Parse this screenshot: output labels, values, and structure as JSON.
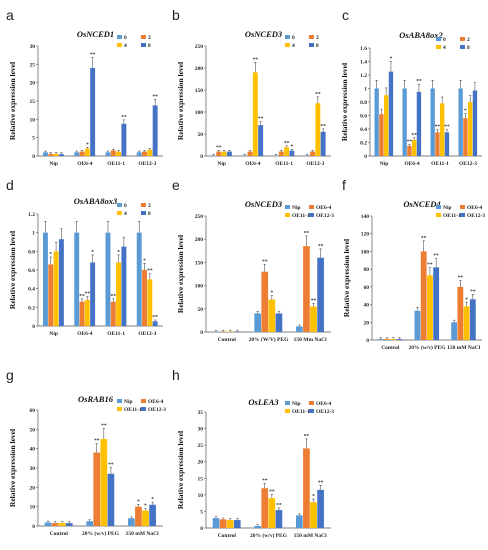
{
  "colors": {
    "series0": "#5b9bd5",
    "series1": "#ed7d31",
    "series2": "#ffc000",
    "series3": "#4472c4"
  },
  "chart_data": [
    {
      "panel": "a",
      "type": "bar",
      "title": "OsNCED1",
      "ylabel": "Relative expression level",
      "ylim": [
        0,
        30
      ],
      "yticks": [
        "0",
        "5",
        "10",
        "15",
        "20",
        "25",
        "30"
      ],
      "categories": [
        "Nip",
        "OE6-4",
        "OE11-1",
        "OE12-3"
      ],
      "series": [
        {
          "name": "0",
          "values": [
            1.0,
            1.0,
            1.0,
            1.0
          ]
        },
        {
          "name": "2",
          "values": [
            0.6,
            1.2,
            1.5,
            1.2
          ]
        },
        {
          "name": "4",
          "values": [
            0.6,
            2.0,
            1.2,
            1.7
          ]
        },
        {
          "name": "8",
          "values": [
            0.5,
            24.0,
            8.8,
            13.8
          ]
        }
      ],
      "sig": [
        [
          "",
          "",
          "",
          ""
        ],
        [
          "",
          "",
          "",
          ""
        ],
        [
          "",
          "*",
          "",
          ""
        ],
        [
          "",
          "**",
          "**",
          "**"
        ]
      ],
      "legend_layout": "2x2"
    },
    {
      "panel": "b",
      "type": "bar",
      "title": "OsNCED3",
      "ylabel": "Relative expression level",
      "ylim": [
        0,
        250
      ],
      "yticks": [
        "0",
        "50",
        "100",
        "150",
        "200",
        "250"
      ],
      "categories": [
        "Nip",
        "OE6-4",
        "OE11-1",
        "OE12-3"
      ],
      "series": [
        {
          "name": "0",
          "values": [
            1,
            1,
            1,
            1
          ]
        },
        {
          "name": "2",
          "values": [
            10,
            10,
            10,
            10
          ]
        },
        {
          "name": "4",
          "values": [
            10,
            190,
            20,
            120
          ]
        },
        {
          "name": "8",
          "values": [
            10,
            70,
            12,
            55
          ]
        }
      ],
      "sig": [
        [
          "",
          "",
          "",
          ""
        ],
        [
          "**",
          "",
          "",
          ""
        ],
        [
          "",
          "**",
          "**",
          "**"
        ],
        [
          "",
          "**",
          "*",
          "**"
        ]
      ],
      "legend_layout": "2x2"
    },
    {
      "panel": "c",
      "type": "bar",
      "title": "OsABA8ox2",
      "ylabel": "Relative expression level",
      "ylim": [
        0,
        1.6
      ],
      "yticks": [
        "0",
        "0.2",
        "0.4",
        "0.6",
        "0.8",
        "1",
        "1.2",
        "1.4",
        "1.6"
      ],
      "categories": [
        "Nip",
        "OE6-4",
        "OE11-1",
        "OE12-3"
      ],
      "series": [
        {
          "name": "0",
          "values": [
            1.0,
            1.0,
            1.0,
            1.0
          ]
        },
        {
          "name": "2",
          "values": [
            0.62,
            0.15,
            0.35,
            0.56
          ]
        },
        {
          "name": "4",
          "values": [
            0.9,
            0.24,
            0.78,
            0.8
          ]
        },
        {
          "name": "8",
          "values": [
            1.25,
            0.95,
            0.35,
            0.97
          ]
        }
      ],
      "sig": [
        [
          "",
          "",
          "",
          ""
        ],
        [
          "",
          "**",
          "**",
          "*"
        ],
        [
          "",
          "**",
          "",
          ""
        ],
        [
          "*",
          "**",
          "**",
          ""
        ]
      ],
      "legend_layout": "2x2"
    },
    {
      "panel": "d",
      "type": "bar",
      "title": "OsABA8ox3",
      "ylabel": "Relative expression level",
      "ylim": [
        0,
        1.2
      ],
      "yticks": [
        "0",
        "0.2",
        "0.4",
        "0.6",
        "0.8",
        "1",
        "1.2"
      ],
      "categories": [
        "Nip",
        "OE6-4",
        "OE11-1",
        "OE12-3"
      ],
      "series": [
        {
          "name": "0",
          "values": [
            1.0,
            1.0,
            1.0,
            1.0
          ]
        },
        {
          "name": "2",
          "values": [
            0.66,
            0.26,
            0.26,
            0.6
          ]
        },
        {
          "name": "4",
          "values": [
            0.8,
            0.28,
            0.68,
            0.5
          ]
        },
        {
          "name": "8",
          "values": [
            0.93,
            0.68,
            0.85,
            0.05
          ]
        }
      ],
      "sig": [
        [
          "",
          "",
          "",
          ""
        ],
        [
          "*",
          "**",
          "**",
          "*"
        ],
        [
          "",
          "**",
          "*",
          "**"
        ],
        [
          "",
          "*",
          "",
          "**"
        ]
      ],
      "legend_layout": "2x2"
    },
    {
      "panel": "e",
      "type": "bar",
      "title": "OsNCED3",
      "ylabel": "Relative expression level",
      "ylim": [
        0,
        250
      ],
      "yticks": [
        "0",
        "50",
        "100",
        "150",
        "200",
        "250"
      ],
      "categories": [
        "Control",
        "20% (W/V) PEG",
        "150 Mm NaCl"
      ],
      "series": [
        {
          "name": "Nip",
          "values": [
            1,
            40,
            12
          ]
        },
        {
          "name": "OE6-4",
          "values": [
            1,
            130,
            185
          ]
        },
        {
          "name": "OE11-1",
          "values": [
            1,
            70,
            55
          ]
        },
        {
          "name": "OE12-3",
          "values": [
            1,
            40,
            160
          ]
        }
      ],
      "sig": [
        [
          "",
          "",
          ""
        ],
        [
          "",
          "**",
          "**"
        ],
        [
          "",
          "*",
          "**"
        ],
        [
          "",
          "",
          "**"
        ]
      ],
      "legend_layout": "2x2"
    },
    {
      "panel": "f",
      "type": "bar",
      "title": "OsNCED4",
      "ylabel": "Relative expression level",
      "ylim": [
        0,
        140
      ],
      "yticks": [
        "0",
        "20",
        "40",
        "60",
        "80",
        "100",
        "120",
        "140"
      ],
      "categories": [
        "Control",
        "20% (w/v) PEG",
        "150 mM NaCl"
      ],
      "series": [
        {
          "name": "Nip",
          "values": [
            1,
            33,
            20
          ]
        },
        {
          "name": "OE6-4",
          "values": [
            1,
            100,
            60
          ]
        },
        {
          "name": "OE11-1",
          "values": [
            1,
            73,
            38
          ]
        },
        {
          "name": "OE12-3",
          "values": [
            1,
            82,
            46
          ]
        }
      ],
      "sig": [
        [
          "",
          "",
          ""
        ],
        [
          "",
          "**",
          "**"
        ],
        [
          "",
          "**",
          "*"
        ],
        [
          "",
          "**",
          "**"
        ]
      ],
      "legend_layout": "2x2"
    },
    {
      "panel": "g",
      "type": "bar",
      "title": "OsRAB16",
      "ylabel": "Relative expression level",
      "ylim": [
        0,
        60
      ],
      "yticks": [
        "0",
        "10",
        "20",
        "30",
        "40",
        "50",
        "60"
      ],
      "categories": [
        "Control",
        "20% (w/v) PEG",
        "150 mM NaCl"
      ],
      "series": [
        {
          "name": "Nip",
          "values": [
            1.8,
            2.5,
            4.0
          ]
        },
        {
          "name": "OE6-4",
          "values": [
            1.5,
            38,
            10
          ]
        },
        {
          "name": "OE11-1",
          "values": [
            1.5,
            45,
            8
          ]
        },
        {
          "name": "OE12-3",
          "values": [
            1.5,
            27,
            11
          ]
        }
      ],
      "sig": [
        [
          "",
          "",
          ""
        ],
        [
          "",
          "**",
          "*"
        ],
        [
          "",
          "**",
          "*"
        ],
        [
          "",
          "**",
          "*"
        ]
      ],
      "legend_layout": "2x2"
    },
    {
      "panel": "h",
      "type": "bar",
      "title": "OsLEA3",
      "ylabel": "Relative expression level",
      "ylim": [
        0,
        35
      ],
      "yticks": [
        "0",
        "5",
        "10",
        "15",
        "20",
        "25",
        "30",
        "35"
      ],
      "categories": [
        "Control",
        "20% (w/v) PEG",
        "150 mM NaCl"
      ],
      "series": [
        {
          "name": "Nip",
          "values": [
            3.0,
            0.6,
            3.8
          ]
        },
        {
          "name": "OE6-4",
          "values": [
            2.6,
            12,
            24
          ]
        },
        {
          "name": "OE11-1",
          "values": [
            2.4,
            9,
            7.8
          ]
        },
        {
          "name": "OE12-3",
          "values": [
            2.4,
            5.4,
            11.5
          ]
        }
      ],
      "sig": [
        [
          "",
          "",
          ""
        ],
        [
          "",
          "**",
          "**"
        ],
        [
          "",
          "**",
          "*"
        ],
        [
          "",
          "**",
          "**"
        ]
      ],
      "legend_layout": "2x2"
    }
  ]
}
